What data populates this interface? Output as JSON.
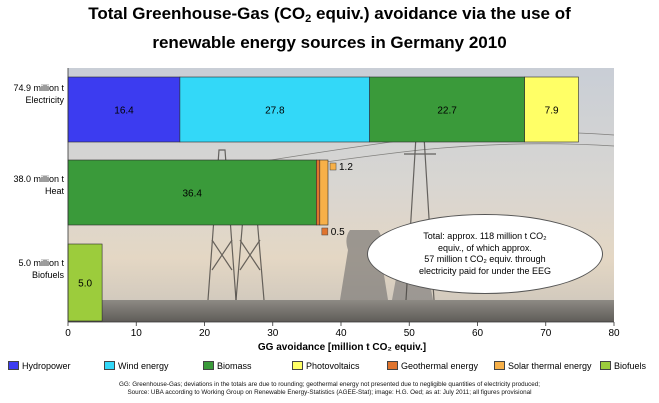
{
  "title": {
    "line1_before": "Total Greenhouse-Gas (CO",
    "line1_sub": "2",
    "line1_after": " equiv.) avoidance via the use of",
    "line2": "renewable energy sources in Germany 2010"
  },
  "chart_data": {
    "type": "bar",
    "orientation": "horizontal",
    "stacked": true,
    "categories": [
      {
        "total": "74.9 million t",
        "name": "Electricity"
      },
      {
        "total": "38.0 million t",
        "name": "Heat"
      },
      {
        "total": "5.0 million t",
        "name": "Biofuels"
      }
    ],
    "series": [
      {
        "name": "Hydropower",
        "color": "#3c3cf0",
        "values": [
          16.4,
          0,
          0
        ]
      },
      {
        "name": "Wind energy",
        "color": "#33d8f8",
        "values": [
          27.8,
          0,
          0
        ]
      },
      {
        "name": "Biomass",
        "color": "#3a9a3a",
        "values": [
          22.7,
          36.4,
          0
        ]
      },
      {
        "name": "Photovoltaics",
        "color": "#ffff66",
        "values": [
          7.9,
          0,
          0
        ]
      },
      {
        "name": "Geothermal energy",
        "color": "#e0742e",
        "values": [
          0,
          0.5,
          0
        ]
      },
      {
        "name": "Solar thermal energy",
        "color": "#f7b048",
        "values": [
          0,
          1.2,
          0
        ]
      },
      {
        "name": "Biofuels",
        "color": "#9ccc3c",
        "values": [
          0,
          0,
          5.0
        ]
      }
    ],
    "data_labels": [
      {
        "text": "16.4"
      },
      {
        "text": "27.8"
      },
      {
        "text": "22.7"
      },
      {
        "text": "7.9"
      },
      {
        "text": "36.4"
      },
      {
        "text": "1.2"
      },
      {
        "text": "0.5"
      },
      {
        "text": "5.0"
      }
    ],
    "xlabel": "GG avoidance [million t CO₂ equiv.]",
    "xlim": [
      0,
      80
    ],
    "xticks": [
      0,
      10,
      20,
      30,
      40,
      50,
      60,
      70,
      80
    ],
    "grid": false,
    "legend_position": "bottom"
  },
  "annotation": {
    "line1": "Total: approx. 118 million t CO₂",
    "line2": "equiv., of which approx.",
    "line3": "57 million t CO₂ equiv. through",
    "line4": "electricity paid for under the EEG"
  },
  "footnote": {
    "line1": "GG: Greenhouse-Gas; deviations in the totals are due to rounding; geothermal energy not presented due to negligible quantities of electricity produced;",
    "line2": "Source: UBA according to Working Group on Renewable Energy-Statistics (AGEE-Stat); image: H.G. Oed; as at: July 2011; all figures provisional"
  }
}
